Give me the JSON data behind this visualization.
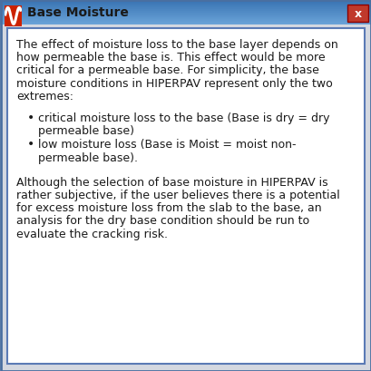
{
  "title": "Base Moisture",
  "title_bar_color_top": "#6aa3d8",
  "title_bar_color_bottom": "#3570b0",
  "title_text_color": "#1a1a1a",
  "bg_color": "#d4d8e0",
  "content_bg": "#ffffff",
  "content_border_color": "#5a7ab5",
  "text_color": "#1a1a1a",
  "font_size": 9.0,
  "title_font_size": 10,
  "para1_lines": [
    "The effect of moisture loss to the base layer depends on",
    "how permeable the base is. This effect would be more",
    "critical for a permeable base. For simplicity, the base",
    "moisture conditions in HIPERPAV represent only the two",
    "extremes:"
  ],
  "bullet1_lines": [
    "critical moisture loss to the base (Base is dry = dry",
    "permeable base)"
  ],
  "bullet2_lines": [
    "low moisture loss (Base is Moist = moist non-",
    "permeable base)."
  ],
  "para2_lines": [
    "Although the selection of base moisture in HIPERPAV is",
    "rather subjective, if the user believes there is a potential",
    "for excess moisture loss from the slab to the base, an",
    "analysis for the dry base condition should be run to",
    "evaluate the cracking risk."
  ],
  "fig_width": 4.1,
  "fig_height": 4.1,
  "dpi": 100
}
